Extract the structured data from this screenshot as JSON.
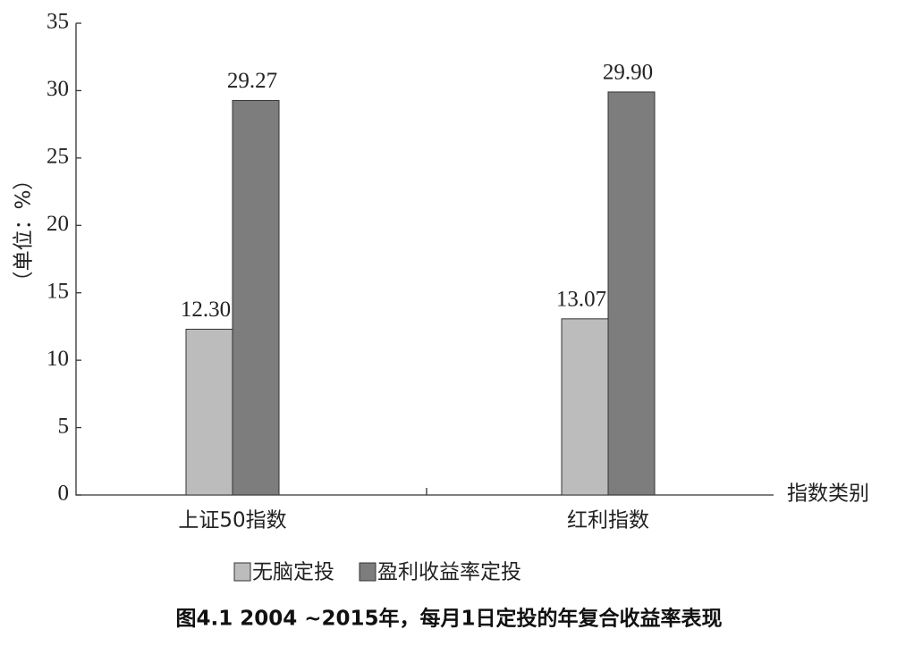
{
  "chart_data": {
    "type": "bar",
    "caption": "图4.1 2004 ~2015年，每月1日定投的年复合收益率表现",
    "y_label": "（单位：%）",
    "x_label": "指数类别",
    "categories": [
      "上证50指数",
      "红利指数"
    ],
    "series": [
      {
        "name": "无脑定投",
        "color": "#bcbcbc",
        "values": [
          12.3,
          13.07
        ],
        "value_labels": [
          "12.30",
          "13.07"
        ]
      },
      {
        "name": "盈利收益率定投",
        "color": "#7d7d7d",
        "values": [
          29.27,
          29.9
        ],
        "value_labels": [
          "29.27",
          "29.90"
        ]
      }
    ],
    "ylim": [
      0,
      35
    ],
    "yticks": [
      0,
      5,
      10,
      15,
      20,
      25,
      30,
      35
    ]
  }
}
